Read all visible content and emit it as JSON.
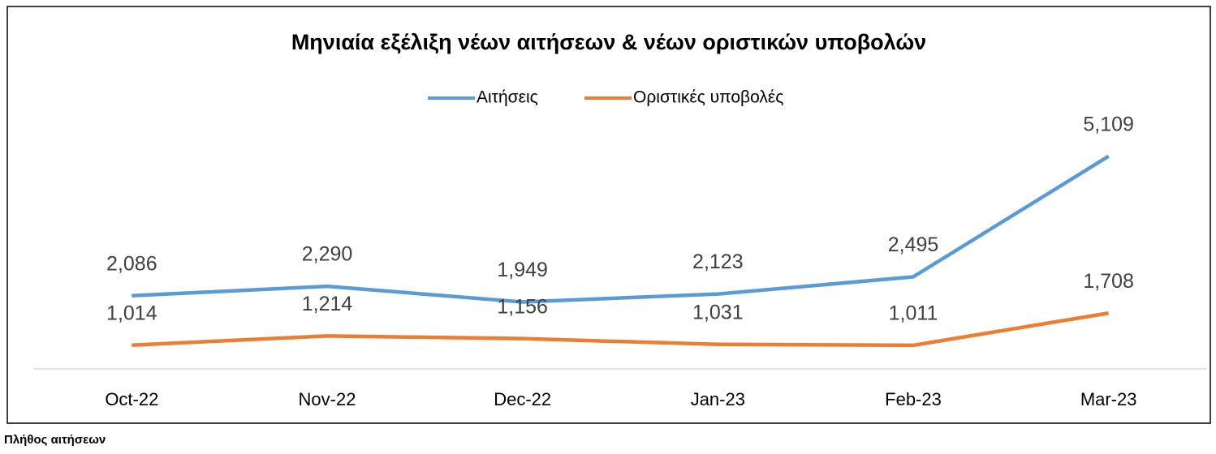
{
  "chart_data": {
    "type": "line",
    "title": "Μηνιαία εξέλιξη νέων αιτήσεων & νέων οριστικών υποβολών",
    "y_label": "Πλήθος αιτήσεων",
    "categories": [
      "Oct-22",
      "Nov-22",
      "Dec-22",
      "Jan-23",
      "Feb-23",
      "Mar-23"
    ],
    "series": [
      {
        "name": "Αιτήσεις",
        "color": "#5b9bd5",
        "values": [
          2086,
          2290,
          1949,
          2123,
          2495,
          5109
        ],
        "value_labels": [
          "2,086",
          "2,290",
          "1,949",
          "2,123",
          "2,495",
          "5,109"
        ]
      },
      {
        "name": "Οριστικές υποβολές",
        "color": "#ed7d31",
        "values": [
          1014,
          1214,
          1156,
          1031,
          1011,
          1708
        ],
        "value_labels": [
          "1,014",
          "1,214",
          "1,156",
          "1,031",
          "1,011",
          "1,708"
        ]
      }
    ],
    "ylim": [
      500,
      6000
    ],
    "legend": "top"
  }
}
